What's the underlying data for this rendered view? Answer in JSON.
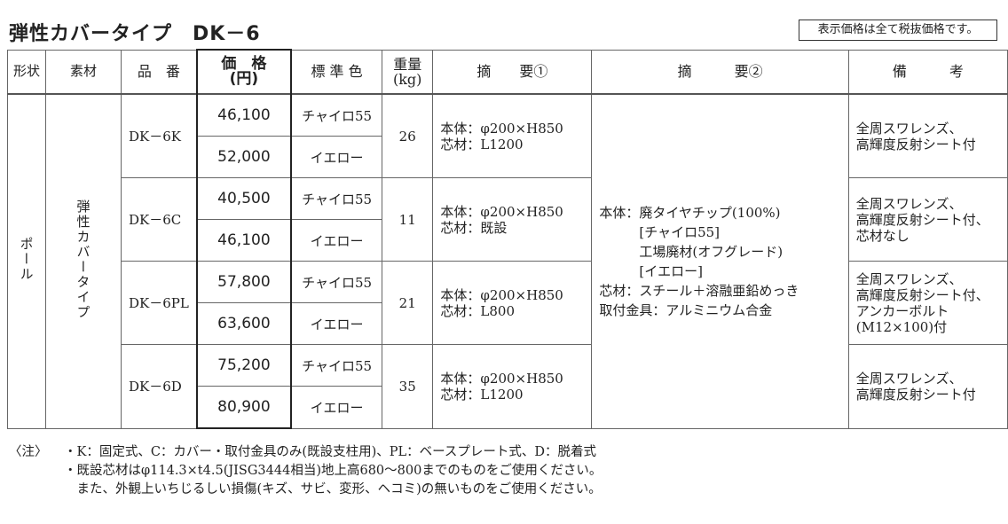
{
  "title": "弾性カバータイプ　DK－6",
  "notice": "表示価格は全て税抜価格です。",
  "headers": {
    "shape": "形状",
    "material": "素材",
    "part": "品　番",
    "price": "価　格",
    "price_unit": "(円)",
    "color": "標 準 色",
    "weight": "重量",
    "weight_unit": "(kg)",
    "summary1": "摘　　要①",
    "summary2": "摘　　　要②",
    "remarks": "備　　　考"
  },
  "shape": "ポール",
  "material": "弾性カバータイプ",
  "products": [
    {
      "part": "DK－6K",
      "weight": "26",
      "summary1": "本体：φ200×H850\n芯材：L1200",
      "remarks": "全周スワレンズ、\n高輝度反射シート付",
      "variants": [
        {
          "price": "46,100",
          "color": "チャイロ55"
        },
        {
          "price": "52,000",
          "color": "イエロー"
        }
      ]
    },
    {
      "part": "DK－6C",
      "weight": "11",
      "summary1": "本体：φ200×H850\n芯材：既設",
      "remarks": "全周スワレンズ、\n高輝度反射シート付、\n芯材なし",
      "variants": [
        {
          "price": "40,500",
          "color": "チャイロ55"
        },
        {
          "price": "46,100",
          "color": "イエロー"
        }
      ]
    },
    {
      "part": "DK－6PL",
      "weight": "21",
      "summary1": "本体：φ200×H850\n芯材：L800",
      "remarks": "全周スワレンズ、\n高輝度反射シート付、\nアンカーボルト\n(M12×100)付",
      "variants": [
        {
          "price": "57,800",
          "color": "チャイロ55"
        },
        {
          "price": "63,600",
          "color": "イエロー"
        }
      ]
    },
    {
      "part": "DK－6D",
      "weight": "35",
      "summary1": "本体：φ200×H850\n芯材：L1200",
      "remarks": "全周スワレンズ、\n高輝度反射シート付",
      "variants": [
        {
          "price": "75,200",
          "color": "チャイロ55"
        },
        {
          "price": "80,900",
          "color": "イエロー"
        }
      ]
    }
  ],
  "summary2": "本体：廃タイヤチップ(100%)\n　　　[チャイロ55]\n　　　工場廃材(オフグレード)\n　　　[イエロー]\n芯材：スチール＋溶融亜鉛めっき\n取付金具：アルミニウム合金",
  "notes": {
    "label": "〈注〉",
    "lines": [
      "・K：固定式、C：カバー・取付金具のみ(既設支柱用)、PL：ベースプレート式、D：脱着式",
      "・既設芯材はφ114.3×t4.5(JISG3444相当)地上高680～800までのものをご使用ください。",
      "　また、外観上いちじるしい損傷(キズ、サビ、変形、ヘコミ)の無いものをご使用ください。"
    ]
  }
}
